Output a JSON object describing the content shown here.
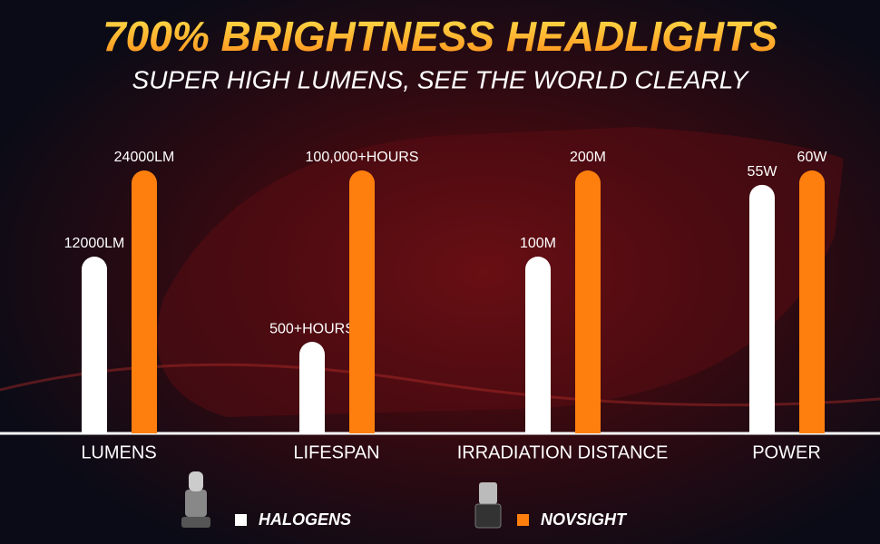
{
  "chart_data": {
    "type": "bar",
    "title": "700% BRIGHTNESS HEADLIGHTS",
    "subtitle": "SUPER HIGH LUMENS, SEE THE WORLD CLEARLY",
    "categories": [
      "LUMENS",
      "LIFESPAN",
      "IRRADIATION DISTANCE",
      "POWER"
    ],
    "series": [
      {
        "name": "HALOGENS",
        "color": "#ffffff",
        "values": [
          12000,
          500,
          100,
          55
        ],
        "value_labels": [
          "12000LM",
          "500+HOURS",
          "100M",
          "55W"
        ]
      },
      {
        "name": "NOVSIGHT",
        "color": "#ff7f0e",
        "values": [
          24000,
          100000,
          200,
          60
        ],
        "value_labels": [
          "24000LM",
          "100,000+HOURS",
          "200M",
          "60W"
        ]
      }
    ]
  }
}
